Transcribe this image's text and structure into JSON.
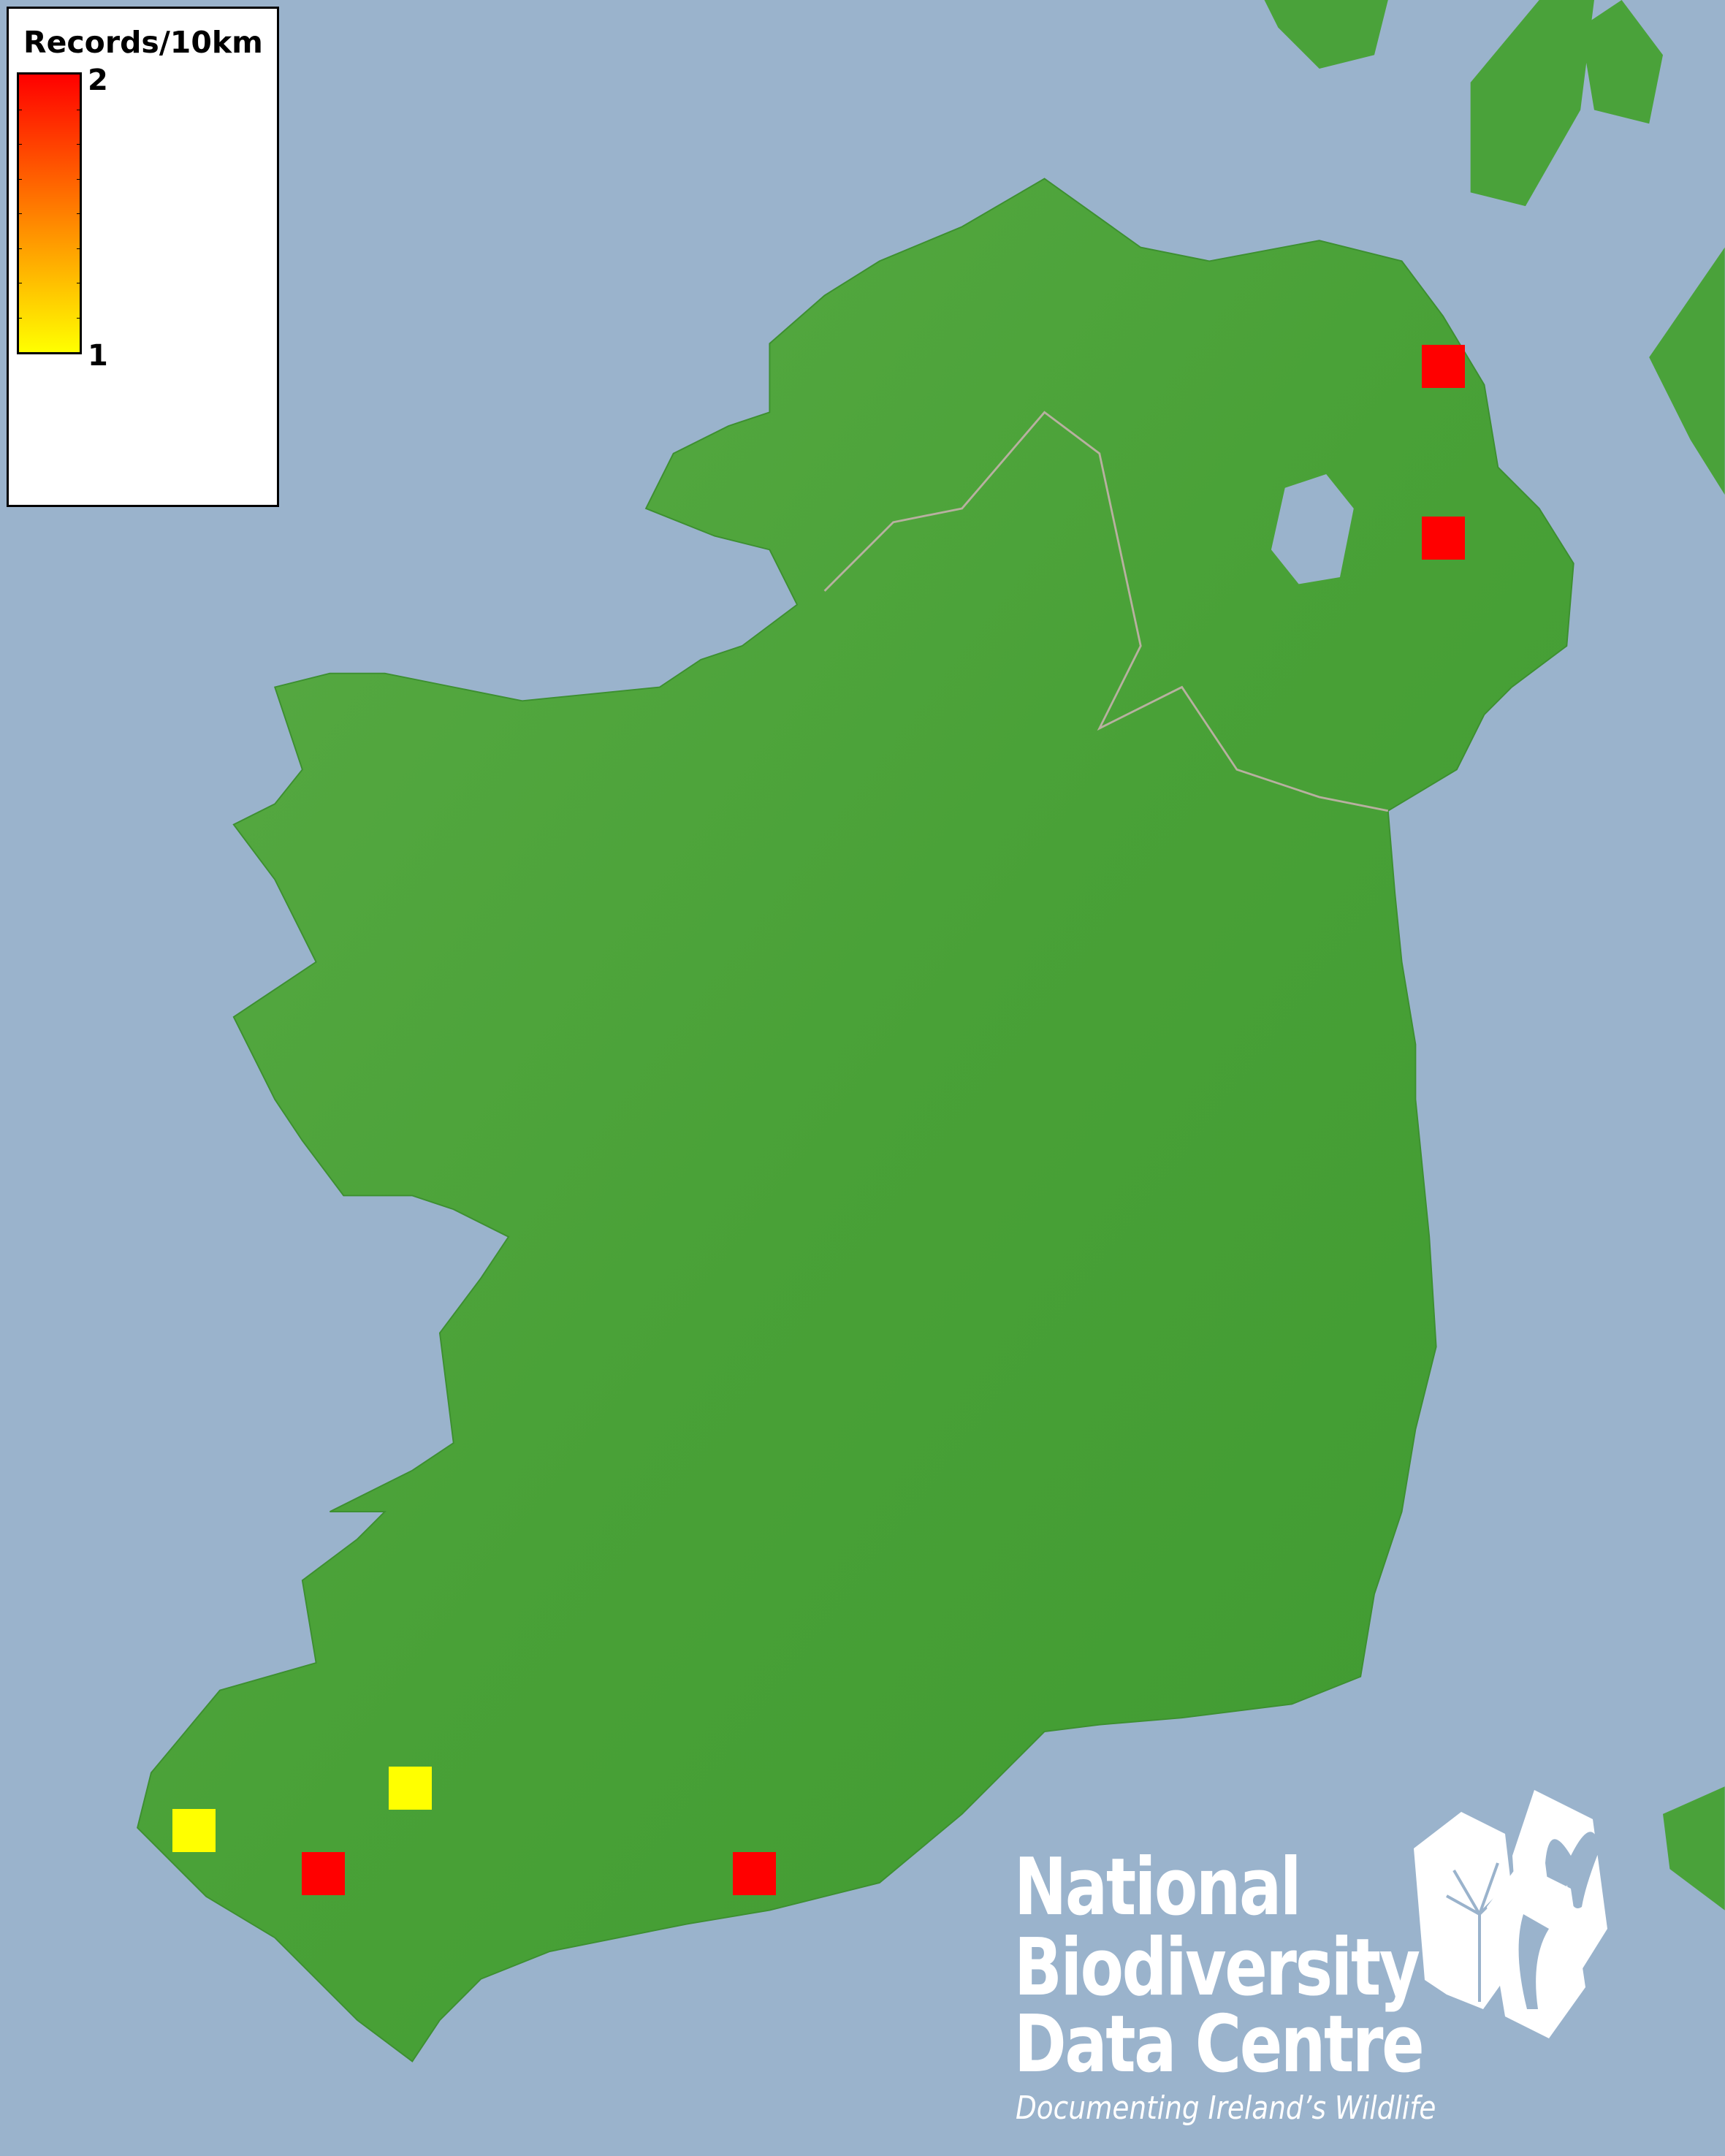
{
  "legend": {
    "title": "Records/10km",
    "max_label": "2",
    "min_label": "1",
    "color_max": "#ff0000",
    "color_min": "#ffff00"
  },
  "map": {
    "sea_color": "#9ab3cc",
    "land_color": "#4aa23a",
    "records": [
      {
        "value": 2,
        "color": "#ff0000"
      },
      {
        "value": 2,
        "color": "#ff0000"
      },
      {
        "value": 1,
        "color": "#ffff00"
      },
      {
        "value": 1,
        "color": "#ffff00"
      },
      {
        "value": 2,
        "color": "#ff0000"
      },
      {
        "value": 2,
        "color": "#ff0000"
      }
    ]
  },
  "logo": {
    "line1": "National",
    "line2": "Biodiversity",
    "line3": "Data Centre",
    "tagline": "Documenting Ireland’s Wildlife",
    "icons": [
      "tree-icon",
      "butterfly-icon",
      "seahorse-icon"
    ]
  }
}
